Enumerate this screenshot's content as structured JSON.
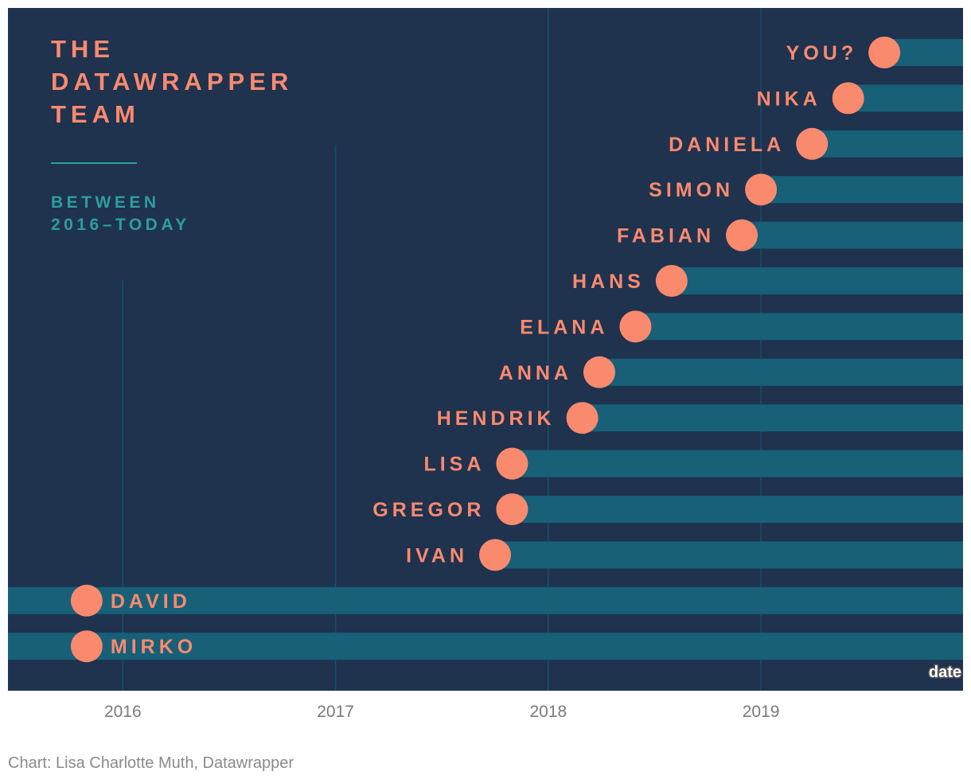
{
  "colors": {
    "background": "#1f324e",
    "bar": "#176078",
    "gridline": "#16506a",
    "dot": "#fa8a6e",
    "label": "#fa8a6e",
    "subtitle": "#2c9ea0",
    "tick_text": "#7a7a7a",
    "axis_name_text": "#ffffff"
  },
  "chart_data": {
    "type": "dot-bar-timeline",
    "title_lines": [
      "THE",
      "DATAWRAPPER",
      "TEAM"
    ],
    "subtitle_lines": [
      "BETWEEN",
      "2016–TODAY"
    ],
    "x_axis": {
      "name": "date",
      "range": [
        2015.46,
        2019.95
      ],
      "ticks": [
        {
          "value": 2016,
          "label": "2016"
        },
        {
          "value": 2017,
          "label": "2017"
        },
        {
          "value": 2018,
          "label": "2018"
        },
        {
          "value": 2019,
          "label": "2019"
        }
      ]
    },
    "members": [
      {
        "name": "YOU?",
        "joined": 2019.58
      },
      {
        "name": "NIKA",
        "joined": 2019.41
      },
      {
        "name": "DANIELA",
        "joined": 2019.24
      },
      {
        "name": "SIMON",
        "joined": 2019.0
      },
      {
        "name": "FABIAN",
        "joined": 2018.91
      },
      {
        "name": "HANS",
        "joined": 2018.58
      },
      {
        "name": "ELANA",
        "joined": 2018.41
      },
      {
        "name": "ANNA",
        "joined": 2018.24
      },
      {
        "name": "HENDRIK",
        "joined": 2018.16
      },
      {
        "name": "LISA",
        "joined": 2017.83
      },
      {
        "name": "GREGOR",
        "joined": 2017.83
      },
      {
        "name": "IVAN",
        "joined": 2017.75
      },
      {
        "name": "DAVID",
        "joined": 2015.83,
        "bar_from_start": true,
        "label_side": "right"
      },
      {
        "name": "MIRKO",
        "joined": 2015.83,
        "bar_from_start": true,
        "label_side": "right"
      }
    ]
  },
  "credit": "Chart: Lisa Charlotte Muth, Datawrapper"
}
